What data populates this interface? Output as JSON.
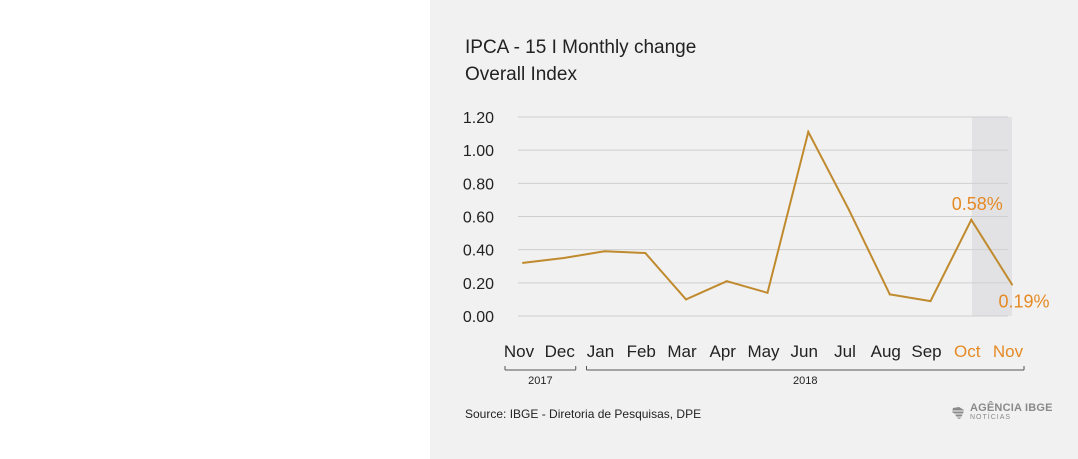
{
  "title": "IPCA - 15 I Monthly change",
  "subtitle": "Overall Index",
  "source": "Source: IBGE - Diretoria de Pesquisas, DPE",
  "logo": {
    "brand": "AGÊNCIA IBGE",
    "sub": "NOTÍCIAS",
    "icon": "ibge-brazil-map-icon"
  },
  "colors": {
    "line": "#c08a2e",
    "highlight_text": "#e58a25",
    "highlight_band": "#e2e2e4",
    "grid": "#cfcfcf",
    "text": "#222222"
  },
  "chart_data": {
    "type": "line",
    "title": "IPCA - 15 I Monthly change",
    "subtitle": "Overall Index",
    "categories": [
      "Nov",
      "Dec",
      "Jan",
      "Feb",
      "Mar",
      "Apr",
      "May",
      "Jun",
      "Jul",
      "Aug",
      "Sep",
      "Oct",
      "Nov"
    ],
    "values": [
      0.32,
      0.35,
      0.39,
      0.38,
      0.1,
      0.21,
      0.14,
      1.11,
      0.64,
      0.13,
      0.09,
      0.58,
      0.19
    ],
    "ylim": [
      0,
      1.2
    ],
    "yticks": [
      "0.00",
      "0.20",
      "0.40",
      "0.60",
      "0.80",
      "1.00",
      "1.20"
    ],
    "grid": true,
    "highlight_categories": [
      11,
      12
    ],
    "annotations": [
      {
        "index": 11,
        "text": "0.58%"
      },
      {
        "index": 12,
        "text": "0.19%"
      }
    ],
    "year_groups": [
      {
        "label": "2017",
        "start": 0,
        "end": 1
      },
      {
        "label": "2018",
        "start": 2,
        "end": 12
      }
    ]
  }
}
